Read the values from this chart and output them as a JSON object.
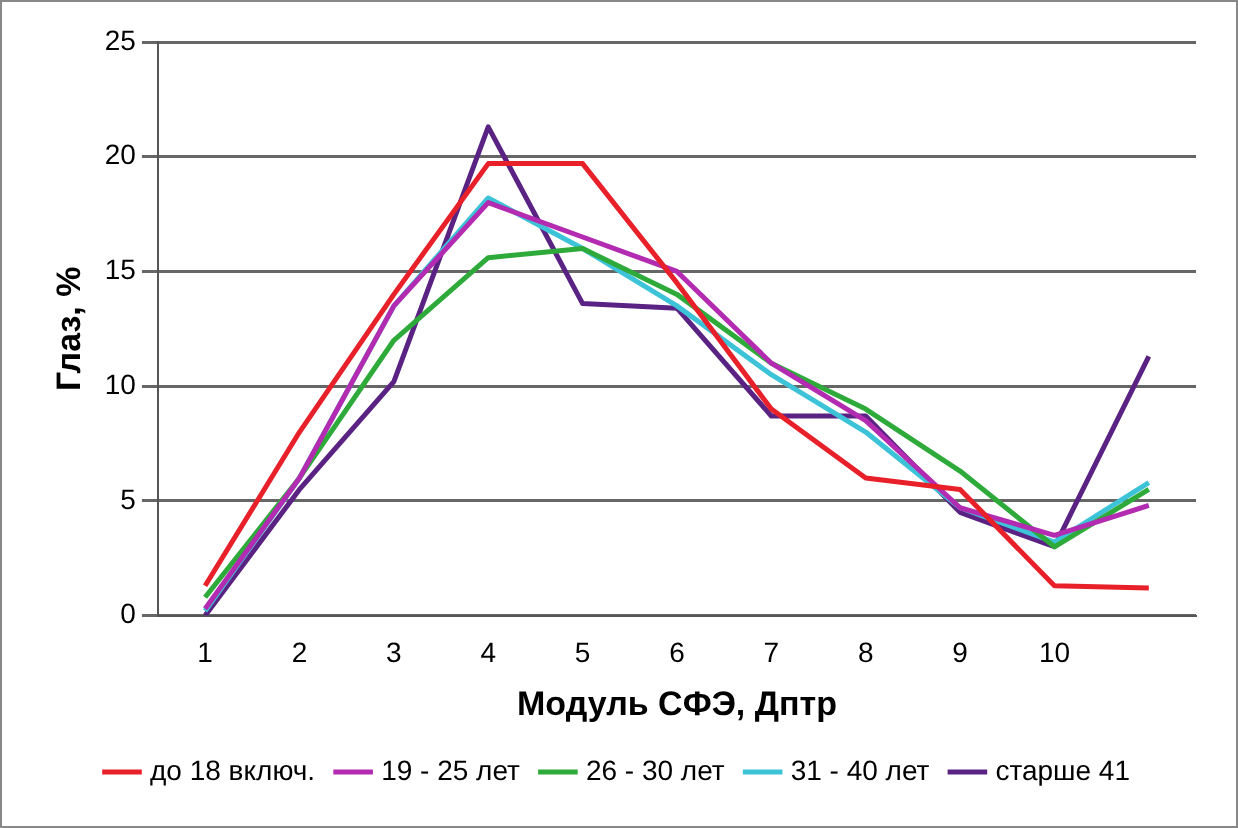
{
  "chart_data": {
    "type": "line",
    "xlabel": "Модуль СФЭ, Дптр",
    "ylabel": "Глаз, %",
    "categories": [
      "1",
      "2",
      "3",
      "4",
      "5",
      "6",
      "7",
      "8",
      "9",
      "10",
      null
    ],
    "ylim": [
      0,
      25
    ],
    "yticks": [
      0,
      5,
      10,
      15,
      20,
      25
    ],
    "grid": "y",
    "legend": "bottom",
    "marker": "none",
    "line_style": "solid",
    "series": [
      {
        "name": "до 18 включ.",
        "color": "#e8202a",
        "values": [
          1.3,
          8,
          14,
          19.7,
          19.7,
          14.5,
          9,
          6,
          5.5,
          1.3,
          1.2
        ]
      },
      {
        "name": "19 - 25 лет",
        "color": "#b22bb0",
        "values": [
          0.3,
          6,
          13.5,
          18,
          16.5,
          15,
          11,
          8.5,
          4.7,
          3.5,
          4.8
        ]
      },
      {
        "name": "26 - 30 лет",
        "color": "#2eaa3a",
        "values": [
          0.8,
          6,
          12,
          15.6,
          16,
          14,
          11,
          9,
          6.3,
          3,
          5.5
        ]
      },
      {
        "name": "31 - 40 лет",
        "color": "#3cc3d8",
        "values": [
          0.2,
          6,
          13.5,
          18.2,
          16,
          13.5,
          10.5,
          8,
          4.7,
          3.2,
          5.8
        ]
      },
      {
        "name": "старше 41",
        "color": "#5a2383",
        "values": [
          0,
          5.5,
          10.2,
          21.3,
          13.6,
          13.4,
          8.7,
          8.7,
          4.5,
          3,
          11.3
        ]
      }
    ]
  }
}
